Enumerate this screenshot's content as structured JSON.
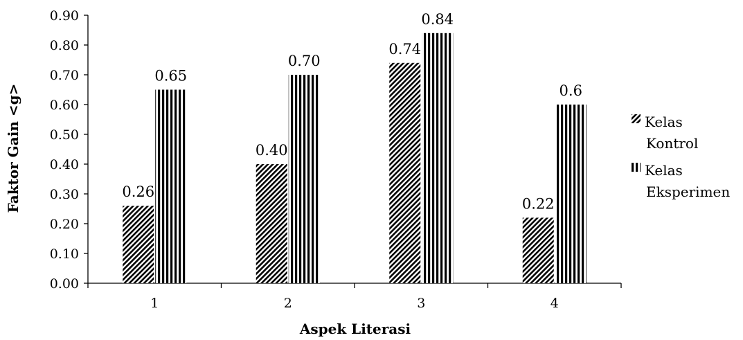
{
  "chart_data": {
    "type": "bar",
    "title": "",
    "xlabel": "Aspek Literasi",
    "ylabel": "Faktor Gain <g>",
    "ylim": [
      0,
      0.9
    ],
    "yticks": [
      "0.00",
      "0.10",
      "0.20",
      "0.30",
      "0.40",
      "0.50",
      "0.60",
      "0.70",
      "0.80",
      "0.90"
    ],
    "categories": [
      "1",
      "2",
      "3",
      "4"
    ],
    "grid": false,
    "legend_position": "right",
    "series": [
      {
        "name": "Kelas Kontrol",
        "legend_lines": [
          "Kelas",
          "Kontrol"
        ],
        "pattern": "diagonal-hatch",
        "values": [
          0.26,
          0.4,
          0.74,
          0.22
        ],
        "labels": [
          "0.26",
          "0.40",
          "0.74",
          "0.22"
        ]
      },
      {
        "name": "Kelas Eksperimen",
        "legend_lines": [
          "Kelas",
          "Eksperimen"
        ],
        "pattern": "vertical-stripes",
        "values": [
          0.65,
          0.7,
          0.84,
          0.6
        ],
        "labels": [
          "0.65",
          "0.70",
          "0.84",
          "0.6"
        ]
      }
    ]
  }
}
